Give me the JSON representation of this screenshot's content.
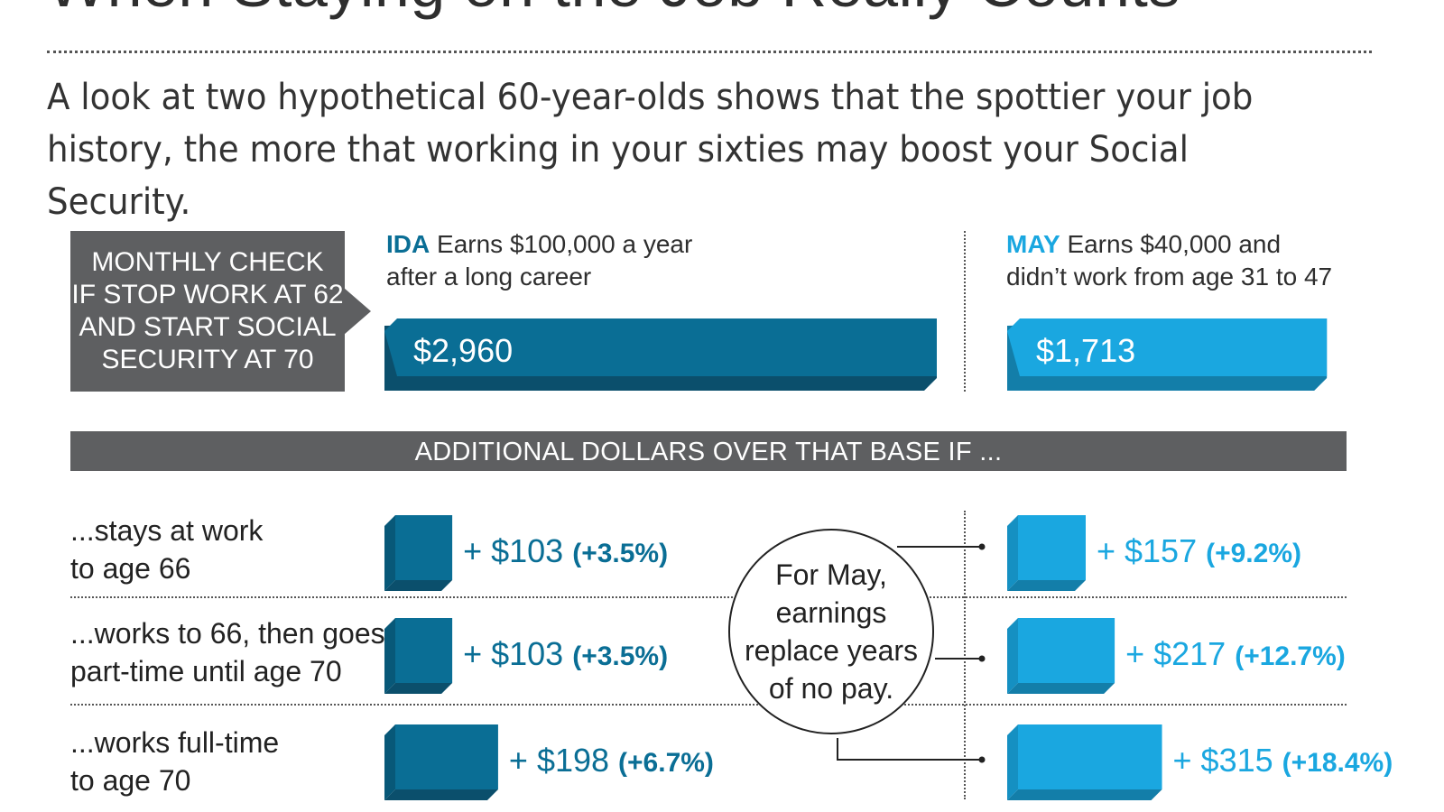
{
  "title": "When Staying on the Job Really Counts",
  "subtitle": "A look at two hypothetical 60-year-olds shows that the spottier your job history, the more that working in your sixties may boost your Social Security.",
  "base_label": "MONTHLY CHECK\nIF STOP WORK AT 62\nAND START SOCIAL\nSECURITY AT 70",
  "band_label": "ADDITIONAL DOLLARS OVER THAT BASE IF ...",
  "note": "For May,\nearnings\nreplace years\nof no pay.",
  "people": [
    {
      "name": "IDA",
      "description": "Earns $100,000 a year\nafter a long career",
      "color": "#0a6e95"
    },
    {
      "name": "MAY",
      "description": "Earns $40,000 and\ndidn’t work from age 31 to 47",
      "color": "#1aa7e0"
    }
  ],
  "chart_data": {
    "type": "bar",
    "base": {
      "title": "MONTHLY CHECK IF STOP WORK AT 62 AND START SOCIAL SECURITY AT 70",
      "series": [
        {
          "name": "IDA",
          "values": [
            2960
          ],
          "labels": [
            "$2,960"
          ]
        },
        {
          "name": "MAY",
          "values": [
            1713
          ],
          "labels": [
            "$1,713"
          ]
        }
      ]
    },
    "additional": {
      "title": "ADDITIONAL DOLLARS OVER THAT BASE IF ...",
      "categories": [
        "...stays at work\nto age 66",
        "...works to 66, then goes\npart-time until age 70",
        "...works full-time\nto age 70"
      ],
      "series": [
        {
          "name": "IDA",
          "values": [
            103,
            103,
            198
          ],
          "labels": [
            "+ $103",
            "+ $103",
            "+ $198"
          ],
          "percent_labels": [
            "(+3.5%)",
            "(+3.5%)",
            "(+6.7%)"
          ]
        },
        {
          "name": "MAY",
          "values": [
            157,
            217,
            315
          ],
          "labels": [
            "+ $157",
            "+ $217",
            "+ $315"
          ],
          "percent_labels": [
            "(+9.2%)",
            "(+12.7%)",
            "(+18.4%)"
          ]
        }
      ]
    }
  }
}
